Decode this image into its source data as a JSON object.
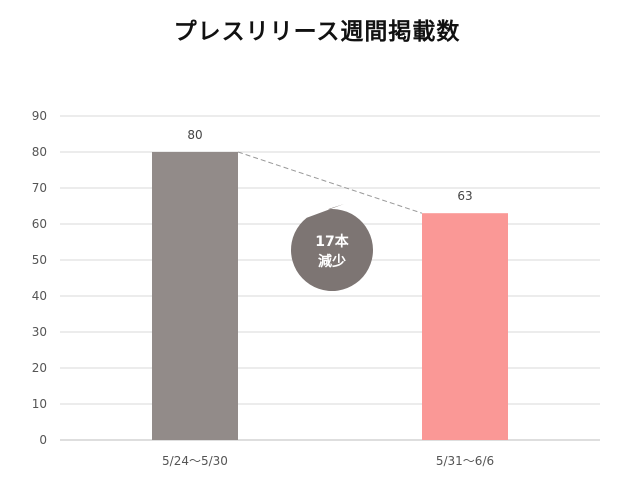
{
  "chart_data": {
    "type": "bar",
    "title": "プレスリリース週間掲載数",
    "categories": [
      "5/24〜5/30",
      "5/31〜6/6"
    ],
    "values": [
      80,
      63
    ],
    "ylim": [
      0,
      90
    ],
    "yticks": [
      0,
      10,
      20,
      30,
      40,
      50,
      60,
      70,
      80,
      90
    ],
    "grid": true,
    "colors": [
      "#928b89",
      "#fa9896"
    ],
    "connector_color": "#999999",
    "annotation": {
      "line1": "17本",
      "line2": "減少",
      "color": "#7d7573"
    }
  }
}
